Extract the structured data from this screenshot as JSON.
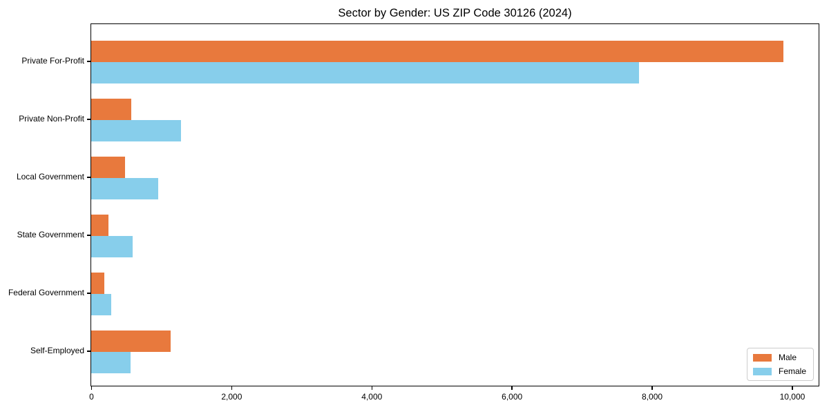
{
  "title": "Sector by Gender: US ZIP Code 30126 (2024)",
  "colors": {
    "male": "#e8793d",
    "female": "#87ceeb",
    "spine": "#000000",
    "legend_border": "#cccccc",
    "background": "#ffffff"
  },
  "legend": {
    "items": [
      {
        "label": "Male",
        "color": "#e8793d"
      },
      {
        "label": "Female",
        "color": "#87ceeb"
      }
    ],
    "position": "lower right"
  },
  "chart_data": {
    "type": "bar",
    "orientation": "horizontal",
    "title": "Sector by Gender: US ZIP Code 30126 (2024)",
    "categories": [
      "Private For-Profit",
      "Private Non-Profit",
      "Local Government",
      "State Government",
      "Federal Government",
      "Self-Employed"
    ],
    "series": [
      {
        "name": "Male",
        "color": "#e8793d",
        "values": [
          9880,
          575,
          480,
          250,
          190,
          1130
        ]
      },
      {
        "name": "Female",
        "color": "#87ceeb",
        "values": [
          7820,
          1280,
          955,
          590,
          290,
          560
        ]
      }
    ],
    "xlabel": "",
    "ylabel": "",
    "xlim": [
      0,
      10370
    ],
    "xticks": [
      0,
      2000,
      4000,
      6000,
      8000,
      10000
    ],
    "xtick_labels": [
      "0",
      "2,000",
      "4,000",
      "6,000",
      "8,000",
      "10,000"
    ],
    "grid": false,
    "legend_position": "lower right"
  }
}
